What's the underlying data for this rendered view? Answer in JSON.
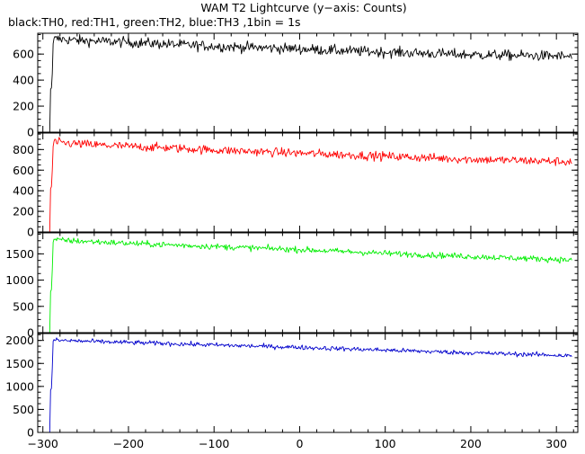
{
  "chart_data": {
    "type": "line",
    "title": "WAM T2 Lightcurve (y−axis: Counts)",
    "subtitle": "black:TH0, red:TH1, green:TH2, blue:TH3 ,1bin = 1s",
    "xlim": [
      -306,
      325
    ],
    "xticks": [
      -300,
      -200,
      -100,
      0,
      100,
      200,
      300
    ],
    "x_tick_labels": [
      "−300",
      "−200",
      "−100",
      "0",
      "100",
      "200",
      "300"
    ],
    "panels": [
      {
        "name": "TH0",
        "color": "#000000",
        "ylim": [
          0,
          760
        ],
        "yticks": [
          0,
          200,
          400,
          600
        ],
        "y_tick_labels": [
          "0",
          "200",
          "400",
          "600"
        ],
        "x": [
          -306,
          -292,
          -291,
          -290,
          -289,
          -288,
          -287,
          -286,
          -280,
          -260,
          -240,
          -200,
          -150,
          -100,
          -50,
          0,
          50,
          100,
          150,
          200,
          250,
          300,
          318
        ],
        "y": [
          0,
          0,
          330,
          340,
          450,
          680,
          720,
          715,
          715,
          705,
          700,
          690,
          675,
          660,
          650,
          640,
          625,
          615,
          605,
          595,
          590,
          585,
          580
        ],
        "noise": 28
      },
      {
        "name": "TH1",
        "color": "#ff0000",
        "ylim": [
          0,
          960
        ],
        "yticks": [
          0,
          200,
          400,
          600,
          800
        ],
        "y_tick_labels": [
          "0",
          "200",
          "400",
          "600",
          "800"
        ],
        "x": [
          -306,
          -292,
          -291,
          -290,
          -289,
          -288,
          -287,
          -286,
          -280,
          -260,
          -240,
          -200,
          -150,
          -100,
          -50,
          0,
          50,
          100,
          150,
          200,
          250,
          300,
          318
        ],
        "y": [
          0,
          0,
          420,
          440,
          600,
          830,
          880,
          870,
          865,
          855,
          845,
          830,
          815,
          795,
          780,
          765,
          750,
          735,
          720,
          705,
          695,
          685,
          680
        ],
        "noise": 30
      },
      {
        "name": "TH2",
        "color": "#00ee00",
        "ylim": [
          0,
          1900
        ],
        "yticks": [
          0,
          500,
          1000,
          1500
        ],
        "y_tick_labels": [
          "0",
          "500",
          "1000",
          "1500"
        ],
        "x": [
          -306,
          -292,
          -291,
          -290,
          -289,
          -288,
          -287,
          -286,
          -280,
          -260,
          -240,
          -200,
          -150,
          -100,
          -50,
          0,
          50,
          100,
          150,
          200,
          250,
          300,
          318
        ],
        "y": [
          0,
          0,
          780,
          820,
          1200,
          1720,
          1780,
          1770,
          1760,
          1745,
          1730,
          1700,
          1670,
          1640,
          1610,
          1580,
          1545,
          1510,
          1480,
          1450,
          1420,
          1395,
          1380
        ],
        "noise": 40
      },
      {
        "name": "TH3",
        "color": "#0000cc",
        "ylim": [
          0,
          2150
        ],
        "yticks": [
          0,
          500,
          1000,
          1500,
          2000
        ],
        "y_tick_labels": [
          "0",
          "500",
          "1000",
          "1500",
          "2000"
        ],
        "x": [
          -306,
          -292,
          -291,
          -290,
          -289,
          -288,
          -287,
          -286,
          -280,
          -260,
          -240,
          -200,
          -150,
          -100,
          -50,
          0,
          50,
          100,
          150,
          200,
          250,
          300,
          318
        ],
        "y": [
          0,
          0,
          920,
          960,
          1400,
          1980,
          2020,
          2010,
          2000,
          1990,
          1975,
          1955,
          1930,
          1900,
          1875,
          1850,
          1820,
          1790,
          1760,
          1730,
          1705,
          1680,
          1660
        ],
        "noise": 35
      }
    ]
  }
}
